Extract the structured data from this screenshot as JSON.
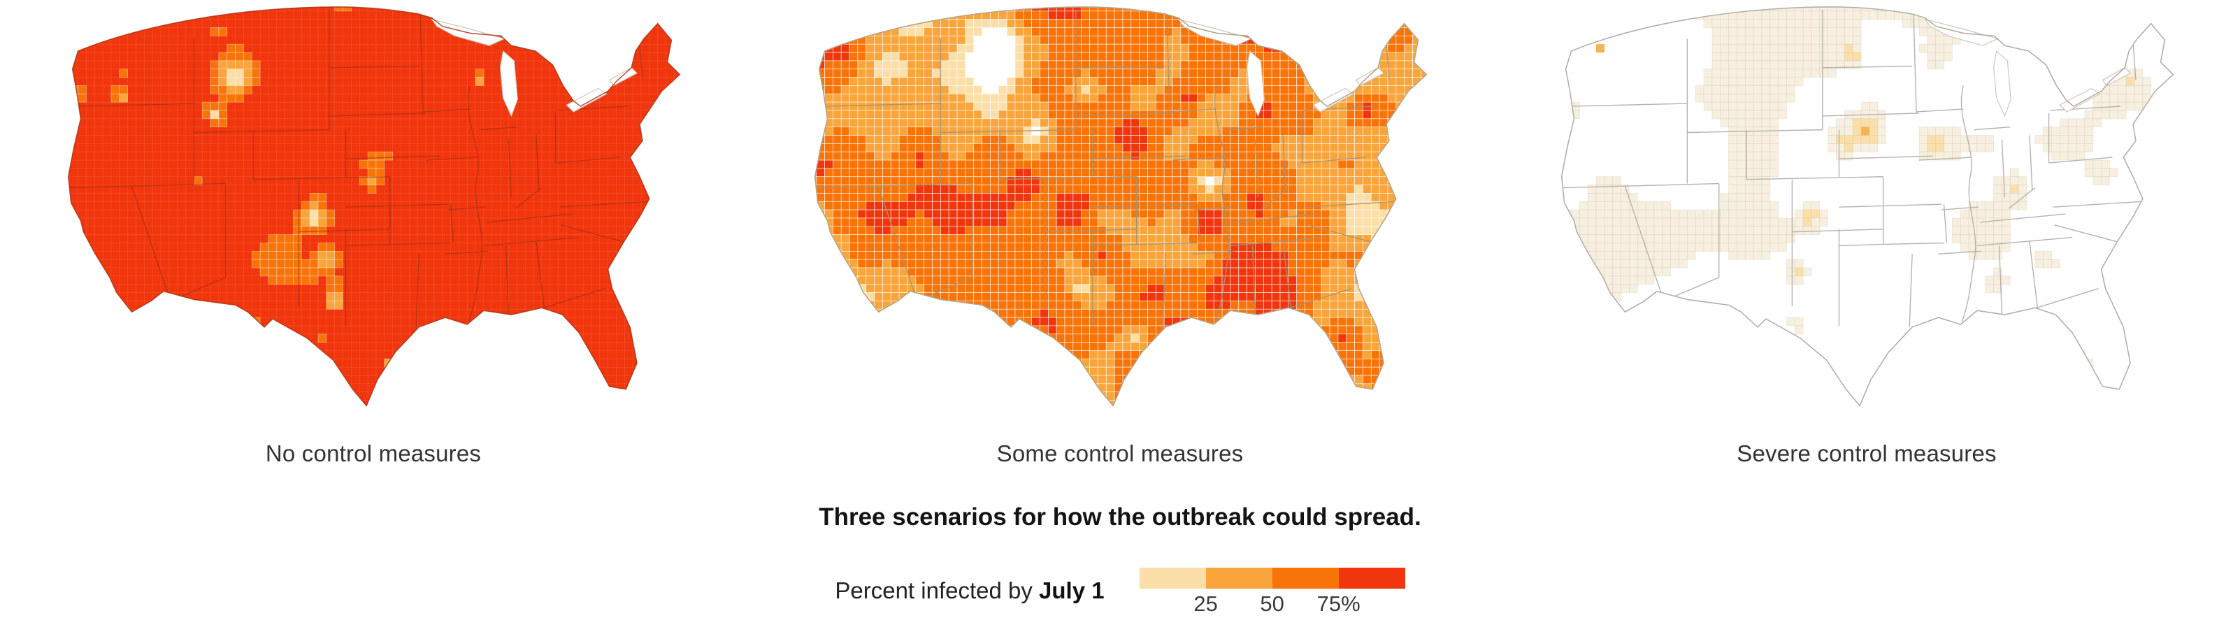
{
  "figure": {
    "scenarios": [
      {
        "label": "No control measures"
      },
      {
        "label": "Some control measures"
      },
      {
        "label": "Severe control measures"
      }
    ],
    "caption": "Three scenarios for how the outbreak could spread.",
    "legend": {
      "label_prefix": "Percent infected by ",
      "label_bold": "July 1",
      "ticks": [
        "25",
        "50",
        "75%"
      ]
    }
  },
  "chart_data": {
    "type": "choropleth",
    "subtype": "small-multiples-us-county-maps",
    "title": "Three scenarios for how the outbreak could spread.",
    "legend": {
      "label": "Percent infected by July 1",
      "unit": "percent of population infected by July 1",
      "bin_breaks_percent": [
        25,
        50,
        75
      ],
      "bin_colors": [
        "#fcdfa8",
        "#faa53b",
        "#f97408",
        "#f1360d"
      ],
      "no_data_color": "#ffffff",
      "position": "bottom-center"
    },
    "maps": [
      {
        "title": "No control measures",
        "summary": "Nearly every county exceeds 75% infected (solid red-orange); isolated lighter pockets along the Rocky Mountain corridor (Montana, Colorado front range, New Mexico, far west Texas) and scattered mid-orange speckle elsewhere.",
        "approx_render": {
          "seed": 11,
          "bias": 0.4,
          "scale": 0.46,
          "freq": [
            8,
            22
          ],
          "breaks": [
            0.28,
            0.4,
            0.52
          ],
          "levels": [
            "#fcdfa8",
            "#faa53b",
            "#f97408",
            "#f1360d"
          ],
          "base": "#f1360d",
          "cellStroke": "rgba(255,255,255,0.45)",
          "grid": "rgba(255,255,255,0.16)",
          "stateStroke": "rgba(155,45,15,0.6)",
          "edge": "rgba(165,48,16,0.8)",
          "spots": [
            [
              0.3,
              0.17,
              0.055,
              -0.55
            ],
            [
              0.27,
              0.26,
              0.03,
              -0.35
            ],
            [
              0.415,
              0.5,
              0.035,
              -0.5
            ],
            [
              0.43,
              0.6,
              0.03,
              -0.42
            ],
            [
              0.445,
              0.7,
              0.03,
              -0.48
            ],
            [
              0.42,
              0.79,
              0.027,
              -0.42
            ],
            [
              0.36,
              0.82,
              0.03,
              -0.5
            ],
            [
              0.33,
              0.74,
              0.02,
              -0.35
            ],
            [
              0.1,
              0.33,
              0.022,
              -0.38
            ],
            [
              0.135,
              0.22,
              0.02,
              -0.3
            ],
            [
              0.245,
              0.42,
              0.02,
              -0.32
            ],
            [
              0.5,
              0.42,
              0.02,
              -0.3
            ],
            [
              0.52,
              0.35,
              0.015,
              -0.26
            ],
            [
              0.655,
              0.18,
              0.02,
              -0.28
            ],
            [
              0.77,
              0.38,
              0.025,
              -0.3
            ],
            [
              0.65,
              0.62,
              0.02,
              -0.26
            ],
            [
              0.52,
              0.84,
              0.02,
              -0.38
            ]
          ]
        }
      },
      {
        "title": "Some control measures",
        "summary": "Patchwork of 25-75% counties; heaviest along the Pacific Northwest and California coasts, Colorado, the eastern plains, Midwest, South, Florida and the Northeast corridor; near-white low zones in Montana/Wyoming, the central plains and west Texas.",
        "approx_render": {
          "seed": 22,
          "bias": 0.16,
          "scale": 0.8,
          "freq": [
            7,
            19
          ],
          "breaks": [
            0.26,
            0.38,
            0.55,
            0.74
          ],
          "levels": [
            "#ffffff",
            "#fcdfa8",
            "#faa53b",
            "#f97408",
            "#f1360d"
          ],
          "base": "#ffffff",
          "cellStroke": "rgba(255,255,255,0.85)",
          "grid": null,
          "stateStroke": "rgba(168,148,115,0.95)",
          "edge": "#b4a58a",
          "spots": [
            [
              0.33,
              0.12,
              0.11,
              -0.5
            ],
            [
              0.38,
              0.3,
              0.07,
              -0.35
            ],
            [
              0.45,
              0.2,
              0.06,
              -0.35
            ],
            [
              0.44,
              0.67,
              0.075,
              -0.45
            ],
            [
              0.52,
              0.79,
              0.05,
              -0.32
            ],
            [
              0.63,
              0.42,
              0.045,
              -0.3
            ],
            [
              0.52,
              0.52,
              0.05,
              -0.3
            ],
            [
              0.3,
              0.55,
              0.05,
              -0.25
            ],
            [
              0.1,
              0.1,
              0.07,
              0.4
            ],
            [
              0.065,
              0.38,
              0.05,
              0.32
            ],
            [
              0.125,
              0.6,
              0.04,
              0.3
            ],
            [
              0.43,
              0.47,
              0.05,
              0.42
            ],
            [
              0.52,
              0.3,
              0.06,
              0.36
            ],
            [
              0.6,
              0.22,
              0.05,
              0.3
            ],
            [
              0.7,
              0.25,
              0.04,
              0.3
            ],
            [
              0.86,
              0.25,
              0.06,
              0.35
            ],
            [
              0.83,
              0.38,
              0.04,
              0.3
            ],
            [
              0.7,
              0.48,
              0.05,
              0.3
            ],
            [
              0.67,
              0.62,
              0.05,
              0.3
            ],
            [
              0.82,
              0.78,
              0.05,
              0.36
            ],
            [
              0.55,
              0.68,
              0.03,
              0.3
            ],
            [
              0.62,
              0.52,
              0.04,
              0.26
            ]
          ]
        }
      },
      {
        "title": "Severe control measures",
        "summary": "Most counties near 0% (white) with gray state borders visible; faint sub-25% tinting scattered nationwide and small stronger spots in Nebraska/South Dakota, Colorado, Iowa, Kentucky, Virginia, the Deep South and one dot in Washington state.",
        "approx_render": {
          "seed": 33,
          "bias": 0.04,
          "scale": 0.5,
          "freq": [
            6,
            15
          ],
          "breaks": [
            0.33,
            0.48,
            0.66,
            0.9
          ],
          "levels": [
            "#ffffff",
            "#f7efdf",
            "#fbdfa8",
            "#f6b254",
            "#ef930f"
          ],
          "base": "#ffffff",
          "cellStroke": "rgba(195,180,155,0.3)",
          "grid": null,
          "stateStroke": "#b6b2aa",
          "edge": "#b3afa7",
          "spots": [
            [
              0.5,
              0.3,
              0.05,
              0.48
            ],
            [
              0.47,
              0.33,
              0.03,
              0.3
            ],
            [
              0.42,
              0.5,
              0.04,
              0.38
            ],
            [
              0.4,
              0.63,
              0.03,
              0.3
            ],
            [
              0.6,
              0.33,
              0.04,
              0.26
            ],
            [
              0.71,
              0.44,
              0.04,
              0.26
            ],
            [
              0.84,
              0.4,
              0.04,
              0.22
            ],
            [
              0.69,
              0.66,
              0.04,
              0.22
            ],
            [
              0.76,
              0.6,
              0.04,
              0.2
            ],
            [
              0.48,
              0.12,
              0.03,
              0.3
            ],
            [
              0.115,
              0.105,
              0.015,
              0.65
            ],
            [
              0.08,
              0.25,
              0.03,
              0.2
            ],
            [
              0.88,
              0.18,
              0.04,
              0.15
            ],
            [
              0.6,
              0.12,
              0.04,
              0.18
            ],
            [
              0.8,
              0.85,
              0.035,
              0.18
            ]
          ]
        }
      }
    ]
  }
}
